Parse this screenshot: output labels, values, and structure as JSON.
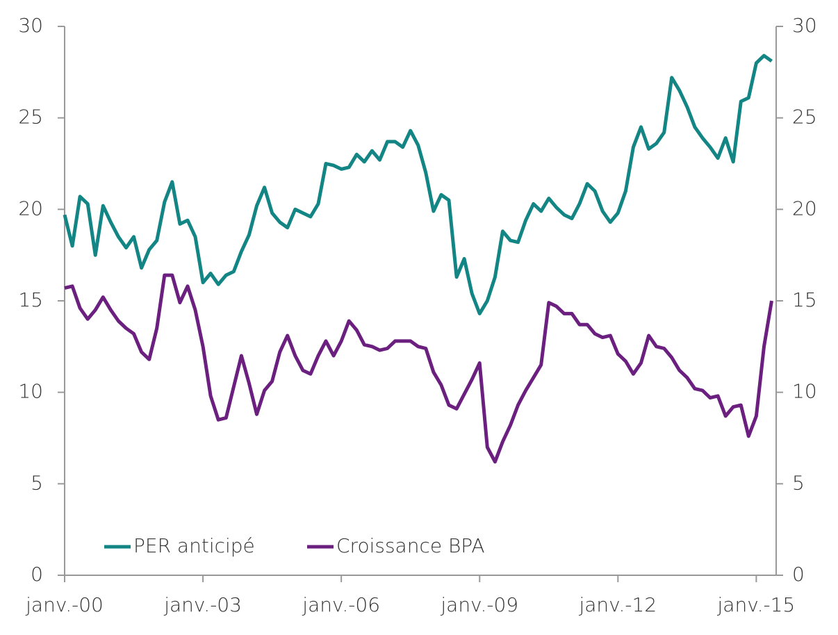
{
  "chart_data": {
    "type": "line",
    "categories": [
      "janv.-00",
      null,
      null,
      null,
      null,
      null,
      null,
      null,
      null,
      null,
      null,
      null,
      null,
      null,
      null,
      null,
      null,
      null,
      "janv.-03",
      null,
      null,
      null,
      null,
      null,
      null,
      null,
      null,
      null,
      null,
      null,
      null,
      null,
      null,
      null,
      null,
      null,
      "janv.-06",
      null,
      null,
      null,
      null,
      null,
      null,
      null,
      null,
      null,
      null,
      null,
      null,
      null,
      null,
      null,
      null,
      null,
      "janv.-09",
      null,
      null,
      null,
      null,
      null,
      null,
      null,
      null,
      null,
      null,
      null,
      null,
      null,
      null,
      null,
      null,
      null,
      "janv.-12",
      null,
      null,
      null,
      null,
      null,
      null,
      null,
      null,
      null,
      null,
      null,
      null,
      null,
      null,
      null,
      null,
      null,
      "janv.-15",
      null,
      null
    ],
    "series": [
      {
        "name": "PER anticipé",
        "color": "#138585",
        "values": [
          19.7,
          18.0,
          20.7,
          20.3,
          17.5,
          20.2,
          19.3,
          18.5,
          17.9,
          18.5,
          16.8,
          17.8,
          18.3,
          20.4,
          21.5,
          19.2,
          19.4,
          18.5,
          16.0,
          16.5,
          15.9,
          16.4,
          16.6,
          17.7,
          18.6,
          20.2,
          21.2,
          19.8,
          19.3,
          19.0,
          20.0,
          19.8,
          19.6,
          20.3,
          22.5,
          22.4,
          22.2,
          22.3,
          23.0,
          22.6,
          23.2,
          22.7,
          23.7,
          23.7,
          23.4,
          24.3,
          23.5,
          22.0,
          19.9,
          20.8,
          20.5,
          16.3,
          17.3,
          15.4,
          14.3,
          15.0,
          16.3,
          18.8,
          18.3,
          18.2,
          19.4,
          20.3,
          19.9,
          20.6,
          20.1,
          19.7,
          19.5,
          20.3,
          21.4,
          21.0,
          19.9,
          19.3,
          19.8,
          21.0,
          23.4,
          24.5,
          23.3,
          23.6,
          24.2,
          27.2,
          26.5,
          25.6,
          24.5,
          23.9,
          23.4,
          22.8,
          23.9,
          22.6,
          25.9,
          26.1,
          28.0,
          28.4,
          28.1
        ]
      },
      {
        "name": "Croissance BPA",
        "color": "#6b2080",
        "axis": "y2",
        "values": [
          15.7,
          15.8,
          14.6,
          14.0,
          14.5,
          15.2,
          14.5,
          13.9,
          13.5,
          13.2,
          12.2,
          11.8,
          13.5,
          16.4,
          16.4,
          14.9,
          15.8,
          14.5,
          12.5,
          9.8,
          8.5,
          8.6,
          10.3,
          12.0,
          10.5,
          8.8,
          10.1,
          10.6,
          12.2,
          13.1,
          12.0,
          11.2,
          11.0,
          12.0,
          12.8,
          12.0,
          12.8,
          13.9,
          13.4,
          12.6,
          12.5,
          12.3,
          12.4,
          12.8,
          12.8,
          12.8,
          12.5,
          12.4,
          11.1,
          10.4,
          9.3,
          9.1,
          9.9,
          10.7,
          11.6,
          7.0,
          6.2,
          7.3,
          8.2,
          9.3,
          10.1,
          10.8,
          11.5,
          14.9,
          14.7,
          14.3,
          14.3,
          13.7,
          13.7,
          13.2,
          13.0,
          13.1,
          12.1,
          11.7,
          11.0,
          11.6,
          13.1,
          12.5,
          12.4,
          11.9,
          11.2,
          10.8,
          10.2,
          10.1,
          9.7,
          9.8,
          8.7,
          9.2,
          9.3,
          7.6,
          8.7,
          12.5,
          15.0
        ]
      }
    ],
    "ylim": [
      0,
      30
    ],
    "yticks": [
      0,
      5,
      10,
      15,
      20,
      25,
      30
    ],
    "y2lim": [
      0,
      30
    ],
    "y2ticks": [
      0,
      5,
      10,
      15,
      20,
      25,
      30
    ],
    "legend": "lower left"
  }
}
